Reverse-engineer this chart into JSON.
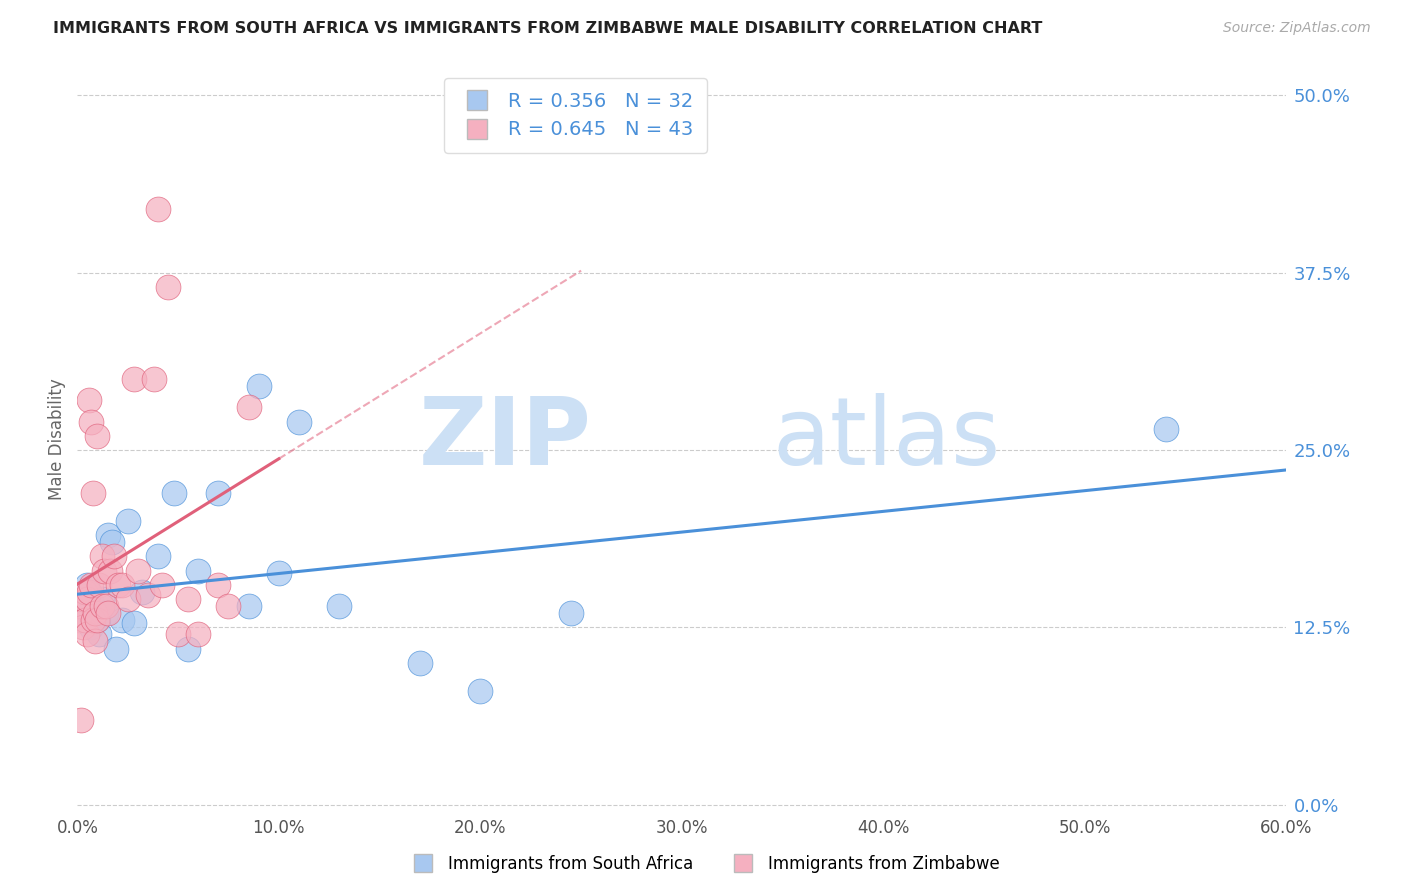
{
  "title": "IMMIGRANTS FROM SOUTH AFRICA VS IMMIGRANTS FROM ZIMBABWE MALE DISABILITY CORRELATION CHART",
  "source": "Source: ZipAtlas.com",
  "ylabel": "Male Disability",
  "legend_label1": "Immigrants from South Africa",
  "legend_label2": "Immigrants from Zimbabwe",
  "R1": 0.356,
  "N1": 32,
  "R2": 0.645,
  "N2": 43,
  "color1": "#a8c8f0",
  "color2": "#f5b0c0",
  "trendline1_color": "#4a90d9",
  "trendline2_color": "#e0607a",
  "xlim": [
    0.0,
    0.6
  ],
  "ylim": [
    -0.005,
    0.52
  ],
  "ytick_vals": [
    0.0,
    0.125,
    0.25,
    0.375,
    0.5
  ],
  "xtick_vals": [
    0.0,
    0.1,
    0.2,
    0.3,
    0.4,
    0.5,
    0.6
  ],
  "background": "#ffffff",
  "grid_color": "#cccccc",
  "watermark_zip": "ZIP",
  "watermark_atlas": "atlas",
  "watermark_color": "#cce0f5",
  "south_africa_x": [
    0.003,
    0.004,
    0.005,
    0.006,
    0.007,
    0.008,
    0.009,
    0.01,
    0.011,
    0.012,
    0.014,
    0.015,
    0.017,
    0.019,
    0.022,
    0.025,
    0.028,
    0.032,
    0.04,
    0.048,
    0.055,
    0.06,
    0.07,
    0.085,
    0.09,
    0.1,
    0.11,
    0.13,
    0.17,
    0.2,
    0.245,
    0.54
  ],
  "south_africa_y": [
    0.13,
    0.145,
    0.155,
    0.135,
    0.125,
    0.14,
    0.135,
    0.13,
    0.12,
    0.145,
    0.135,
    0.19,
    0.185,
    0.11,
    0.13,
    0.2,
    0.128,
    0.15,
    0.175,
    0.22,
    0.11,
    0.165,
    0.22,
    0.14,
    0.295,
    0.163,
    0.27,
    0.14,
    0.1,
    0.08,
    0.135,
    0.265
  ],
  "zimbabwe_x": [
    0.001,
    0.002,
    0.002,
    0.003,
    0.003,
    0.004,
    0.004,
    0.005,
    0.005,
    0.006,
    0.006,
    0.007,
    0.007,
    0.008,
    0.008,
    0.009,
    0.009,
    0.01,
    0.01,
    0.011,
    0.012,
    0.012,
    0.013,
    0.014,
    0.015,
    0.016,
    0.018,
    0.02,
    0.022,
    0.025,
    0.028,
    0.03,
    0.035,
    0.038,
    0.04,
    0.042,
    0.045,
    0.05,
    0.055,
    0.06,
    0.07,
    0.075,
    0.085
  ],
  "zimbabwe_y": [
    0.13,
    0.06,
    0.14,
    0.145,
    0.125,
    0.15,
    0.13,
    0.145,
    0.12,
    0.285,
    0.15,
    0.27,
    0.155,
    0.22,
    0.13,
    0.135,
    0.115,
    0.26,
    0.13,
    0.155,
    0.14,
    0.175,
    0.165,
    0.14,
    0.135,
    0.165,
    0.175,
    0.155,
    0.155,
    0.145,
    0.3,
    0.165,
    0.148,
    0.3,
    0.42,
    0.155,
    0.365,
    0.12,
    0.145,
    0.12,
    0.155,
    0.14,
    0.28
  ]
}
